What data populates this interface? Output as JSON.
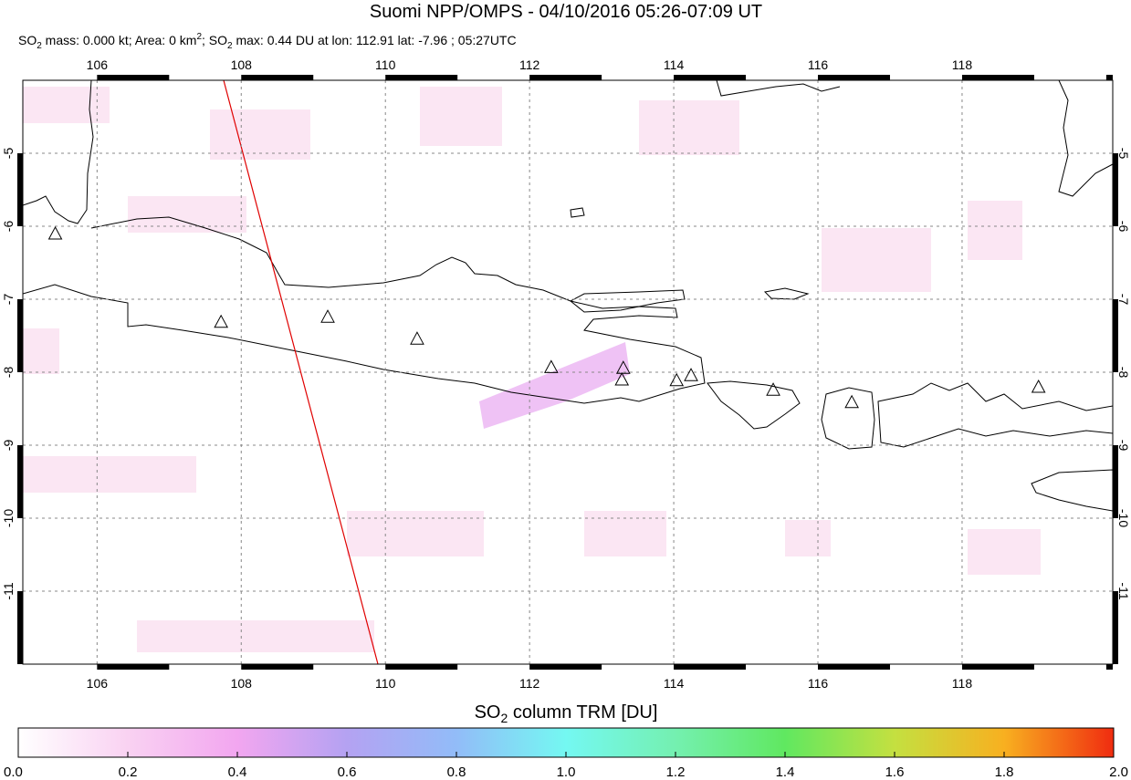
{
  "chart_data": {
    "type": "map",
    "title": "Suomi NPP/OMPS - 04/10/2016 05:26-07:09 UT",
    "subtitle_parts": [
      "SO",
      "2",
      " mass: 0.000 kt; Area: 0 km",
      "2",
      "; SO",
      "2",
      " max: 0.44 DU at lon: 112.91 lat: -7.96 ; 05:27UTC"
    ],
    "xlim": [
      104.97,
      120.09
    ],
    "ylim": [
      -12,
      -4
    ],
    "xticks": [
      106,
      108,
      110,
      112,
      114,
      116,
      118
    ],
    "yticks": [
      -5,
      -6,
      -7,
      -8,
      -9,
      -10,
      -11
    ],
    "grid": true,
    "volcanoes": {
      "lon": [
        105.42,
        107.72,
        109.2,
        110.44,
        112.3,
        113.3,
        113.28,
        114.04,
        114.24,
        115.38,
        116.47,
        119.06
      ],
      "lat": [
        -6.1,
        -7.31,
        -7.24,
        -7.54,
        -7.93,
        -7.94,
        -8.1,
        -8.11,
        -8.04,
        -8.24,
        -8.41,
        -8.2
      ]
    },
    "colorbar": {
      "label_parts": [
        "SO",
        "2",
        " column TRM [DU]"
      ],
      "lim": [
        0,
        2
      ],
      "colors": [
        "#ffffff",
        "#f9d2f2",
        "#f2a6f0",
        "#b4a2f2",
        "#92bcf8",
        "#74f8f2",
        "#74f0b0",
        "#60e860",
        "#c4e040",
        "#f8b020",
        "#f02c10"
      ],
      "ticks": [
        {
          "value": 0,
          "label": "0.0"
        },
        {
          "value": 0.2,
          "label": "0.2"
        },
        {
          "value": 0.4,
          "label": "0.4"
        },
        {
          "value": 0.6,
          "label": "0.6"
        },
        {
          "value": 0.8,
          "label": "0.8"
        },
        {
          "value": 1,
          "label": "1.0"
        },
        {
          "value": 1.2,
          "label": "1.2"
        },
        {
          "value": 1.4,
          "label": "1.4"
        },
        {
          "value": 1.6,
          "label": "1.6"
        },
        {
          "value": 1.8,
          "label": "1.8"
        },
        {
          "value": 2,
          "label": "2.0"
        }
      ]
    }
  }
}
